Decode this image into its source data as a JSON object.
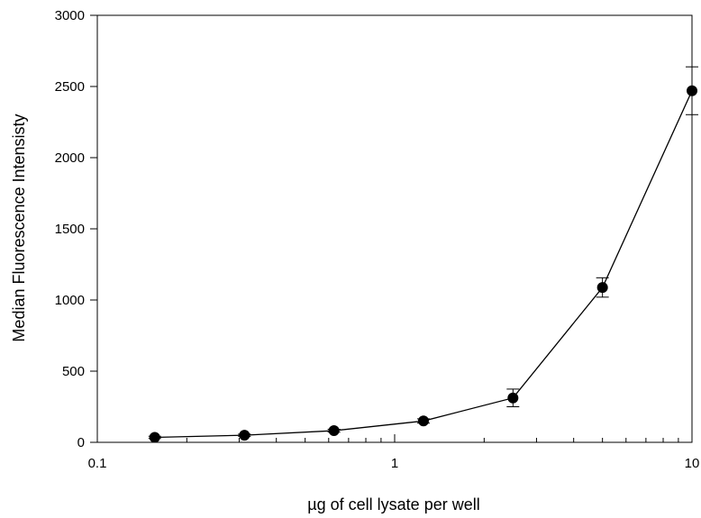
{
  "chart_data": {
    "type": "scatter",
    "xlabel": "µg of cell lysate per well",
    "ylabel": "Median Fluorescence Intensisty",
    "x_scale": "log",
    "xlim": [
      0.1,
      10
    ],
    "ylim": [
      0,
      3000
    ],
    "x_ticks": [
      "0.1",
      "1",
      "10"
    ],
    "y_ticks": [
      "0",
      "500",
      "1000",
      "1500",
      "2000",
      "2500",
      "3000"
    ],
    "grid": false,
    "legend": "none",
    "marker_color": "#000000",
    "series": [
      {
        "x": [
          0.156,
          0.3125,
          0.625,
          1.25,
          2.5,
          5,
          10
        ],
        "y": [
          35,
          50,
          82,
          150,
          312,
          1088,
          2470
        ],
        "error": [
          8,
          8,
          10,
          15,
          62,
          68,
          168
        ]
      }
    ]
  }
}
